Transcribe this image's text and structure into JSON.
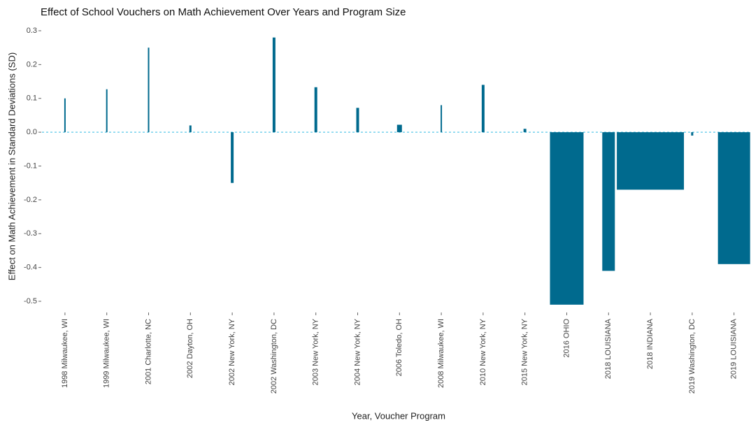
{
  "chart_data": {
    "type": "bar",
    "title": "Effect of School Vouchers on Math Achievement Over Years and Program Size",
    "x_label": "Year, Voucher Program",
    "y_label": "Effect on Math Achievement in Standard Deviations (SD)",
    "categories": [
      "1998 Milwaukee, WI",
      "1999 Milwaukee, WI",
      "2001 Charlotte, NC",
      "2002 Dayton, OH",
      "2002 New York, NY",
      "2002 Washington, DC",
      "2003 New York, NY",
      "2004 New York, NY",
      "2006 Toledo, OH",
      "2008 Milwaukee, WI",
      "2010 New York, NY",
      "2015 New York, NY",
      "2016 OHIO",
      "2018 LOUISIANA",
      "2018 INDIANA",
      "2019 Washington, DC",
      "2019 LOUISIANA"
    ],
    "values": [
      0.1,
      0.127,
      0.25,
      0.02,
      -0.15,
      0.28,
      0.133,
      0.072,
      0.022,
      0.08,
      0.14,
      0.01,
      -0.51,
      -0.41,
      -0.17,
      -0.01,
      -0.39
    ],
    "sizes": [
      2,
      2,
      2,
      3,
      4,
      4,
      4,
      4,
      7,
      2,
      4,
      4,
      48,
      18,
      96,
      3,
      46
    ],
    "color": "#006a8e",
    "ylim": [
      -0.52,
      0.32
    ],
    "yticks": [
      0.3,
      0.2,
      0.1,
      {
        "value": 0,
        "label": "0.0"
      },
      -0.1,
      -0.2,
      -0.3,
      -0.4,
      -0.5
    ],
    "grid": false
  }
}
